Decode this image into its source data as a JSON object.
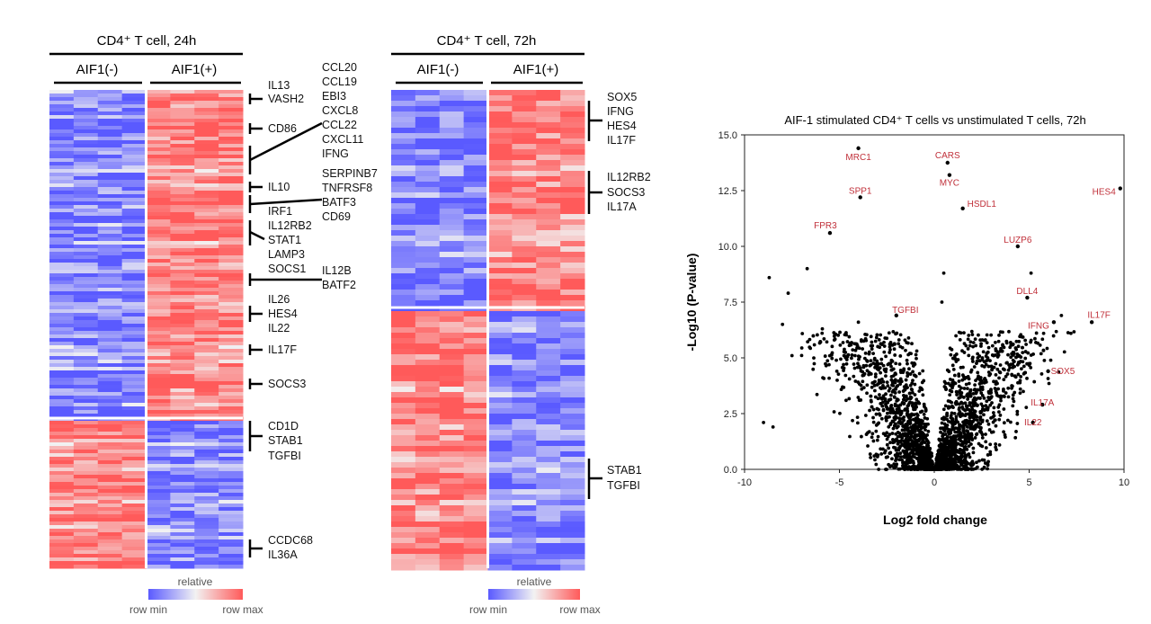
{
  "heatmaps": [
    {
      "title": "CD4⁺ T cell, 24h",
      "groups": [
        "AIF1(-)",
        "AIF1(+)"
      ],
      "legend": {
        "title": "relative",
        "min_label": "row min",
        "max_label": "row max"
      },
      "gene_labels": [
        "IL13",
        "VASH2",
        "CD86",
        "CCL20",
        "CCL19",
        "EBI3",
        "CXCL8",
        "CCL22",
        "CXCL11",
        "IFNG",
        "SERPINB7",
        "TNFRSF8",
        "BATF3",
        "CD69",
        "IL10",
        "IRF1",
        "IL12RB2",
        "STAT1",
        "LAMP3",
        "SOCS1",
        "IL12B",
        "BATF2",
        "IL26",
        "HES4",
        "IL22",
        "IL17F",
        "SOCS3",
        "CD1D",
        "STAB1",
        "TGFBI",
        "CCDC68",
        "IL36A"
      ]
    },
    {
      "title": "CD4⁺ T cell, 72h",
      "groups": [
        "AIF1(-)",
        "AIF1(+)"
      ],
      "legend": {
        "title": "relative",
        "min_label": "row min",
        "max_label": "row max"
      },
      "gene_labels": [
        "SOX5",
        "IFNG",
        "HES4",
        "IL17F",
        "IL12RB2",
        "SOCS3",
        "IL17A",
        "STAB1",
        "TGFBI"
      ]
    }
  ],
  "colors": {
    "row_min": "#5a5aff",
    "mid": "#f2f2f2",
    "row_max": "#ff5a5a",
    "label": "#c0303a",
    "point": "#000000"
  },
  "chart_data": {
    "type": "scatter",
    "title": "AIF-1 stimulated CD4⁺ T cells vs unstimulated T cells, 72h",
    "xlabel": "Log2 fold change",
    "ylabel": "-Log10 (P-value)",
    "xlim": [
      -10,
      10
    ],
    "ylim": [
      0,
      15
    ],
    "xticks": [
      "-10",
      "-5",
      "0",
      "5",
      "10"
    ],
    "yticks": [
      "0.0",
      "2.5",
      "5.0",
      "7.5",
      "10.0",
      "12.5",
      "15.0"
    ],
    "grid": false,
    "labeled_points": [
      {
        "name": "MRC1",
        "x": -4.0,
        "y": 14.4
      },
      {
        "name": "CARS",
        "x": 0.7,
        "y": 13.75
      },
      {
        "name": "MYC",
        "x": 0.8,
        "y": 13.2
      },
      {
        "name": "HES4",
        "x": 9.8,
        "y": 12.6
      },
      {
        "name": "SPP1",
        "x": -3.9,
        "y": 12.2
      },
      {
        "name": "HSDL1",
        "x": 1.5,
        "y": 11.7
      },
      {
        "name": "FPR3",
        "x": -5.5,
        "y": 10.6
      },
      {
        "name": "LUZP6",
        "x": 4.4,
        "y": 10.0
      },
      {
        "name": "DLL4",
        "x": 4.9,
        "y": 7.7
      },
      {
        "name": "TGFBI",
        "x": -2.0,
        "y": 6.9
      },
      {
        "name": "IFNG",
        "x": 6.3,
        "y": 6.6
      },
      {
        "name": "IL17F",
        "x": 8.3,
        "y": 6.6
      },
      {
        "name": "SOX5",
        "x": 6.0,
        "y": 4.4
      },
      {
        "name": "IL17A",
        "x": 5.7,
        "y": 2.9
      },
      {
        "name": "IL22",
        "x": 5.2,
        "y": 2.1
      }
    ]
  }
}
